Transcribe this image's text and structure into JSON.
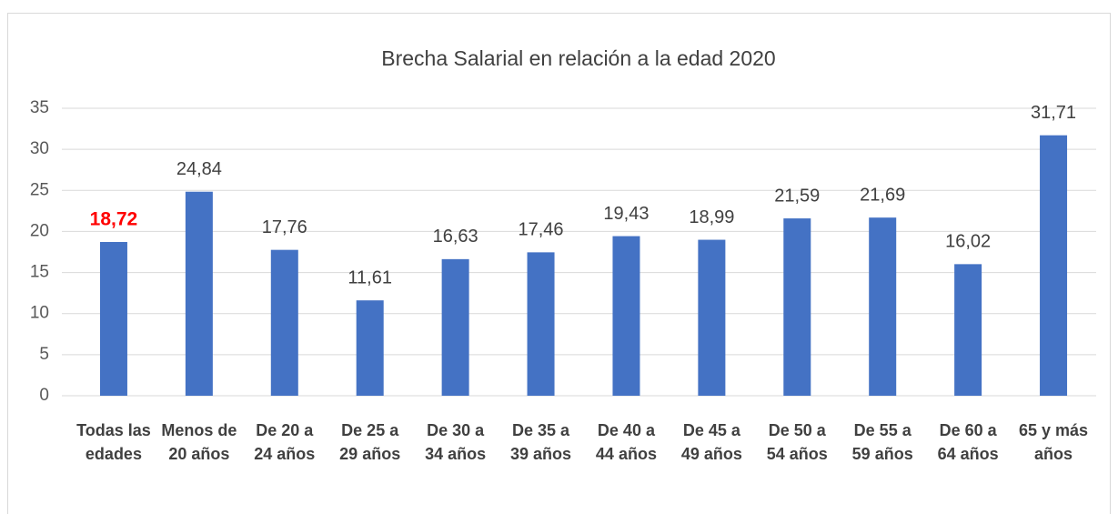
{
  "chart_data": {
    "type": "bar",
    "title": "Brecha Salarial en relación a la edad 2020",
    "categories": [
      "Todas las edades",
      "Menos de 20 años",
      "De 20 a 24 años",
      "De 25 a 29 años",
      "De 30 a 34 años",
      "De 35 a 39 años",
      "De 40 a 44 años",
      "De 45 a 49 años",
      "De 50 a 54 años",
      "De 55 a 59 años",
      "De 60 a 64 años",
      "65 y más años"
    ],
    "values": [
      18.72,
      24.84,
      17.76,
      11.61,
      16.63,
      17.46,
      19.43,
      18.99,
      21.59,
      21.69,
      16.02,
      31.71
    ],
    "value_labels": [
      "18,72",
      "24,84",
      "17,76",
      "11,61",
      "16,63",
      "17,46",
      "19,43",
      "18,99",
      "21,59",
      "21,69",
      "16,02",
      "31,71"
    ],
    "color": "#4472c4",
    "highlight_index": 0,
    "highlight_color": "#ff0000",
    "ylim": [
      0,
      35
    ],
    "yticks": [
      0,
      5,
      10,
      15,
      20,
      25,
      30,
      35
    ],
    "grid": true
  }
}
